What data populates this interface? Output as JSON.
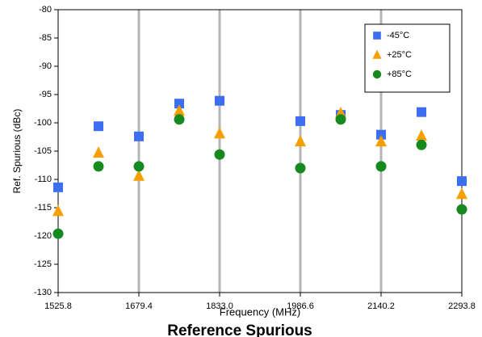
{
  "chart_data": {
    "type": "scatter",
    "title": "Reference Spurious",
    "x_label": "Frequency (MHz)",
    "y_label": "Ref. Spurious (dBc)",
    "x": [
      1525.8,
      1602.6,
      1679.4,
      1756.2,
      1833.0,
      1986.6,
      2063.4,
      2140.2,
      2217.0,
      2293.8
    ],
    "series": [
      {
        "name": "-45°C",
        "color": "#3d6ef0",
        "marker": "square",
        "values": [
          -111.4,
          -100.6,
          -102.4,
          -96.6,
          -96.1,
          -99.7,
          -98.6,
          -102.1,
          -98.1,
          -110.3
        ]
      },
      {
        "name": "+25°C",
        "color": "#f5a000",
        "marker": "triangle",
        "values": [
          -115.6,
          -105.3,
          -109.4,
          -97.9,
          -101.9,
          -103.3,
          -98.3,
          -103.3,
          -102.3,
          -112.6
        ]
      },
      {
        "name": "+85°C",
        "color": "#168a1e",
        "marker": "circle",
        "values": [
          -119.6,
          -107.7,
          -107.7,
          -99.4,
          -105.6,
          -108.0,
          -99.4,
          -107.7,
          -103.9,
          -115.3
        ]
      }
    ],
    "xlim": [
      1525.8,
      2293.8
    ],
    "xticks": [
      1525.8,
      1679.4,
      {
        "value": 1833.0,
        "label": "1833.0"
      },
      1986.6,
      2140.2,
      2293.8
    ],
    "ylim": [
      -130,
      -80
    ],
    "yticks": [
      -130,
      -125,
      -120,
      -115,
      -110,
      -105,
      -100,
      -95,
      -90,
      -85,
      -80
    ],
    "grid": "x",
    "legend": "upper right"
  }
}
